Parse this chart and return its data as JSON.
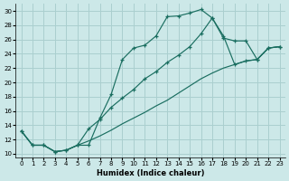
{
  "xlabel": "Humidex (Indice chaleur)",
  "bg_color": "#cce8e8",
  "grid_color": "#aacfcf",
  "line_color": "#1a6e60",
  "xlim": [
    -0.5,
    23.5
  ],
  "ylim": [
    9.5,
    31
  ],
  "xticks": [
    0,
    1,
    2,
    3,
    4,
    5,
    6,
    7,
    8,
    9,
    10,
    11,
    12,
    13,
    14,
    15,
    16,
    17,
    18,
    19,
    20,
    21,
    22,
    23
  ],
  "yticks": [
    10,
    12,
    14,
    16,
    18,
    20,
    22,
    24,
    26,
    28,
    30
  ],
  "line1_x": [
    0,
    1,
    2,
    3,
    4,
    5,
    6,
    7,
    8,
    9,
    10,
    11,
    12,
    13,
    14,
    15,
    16,
    17,
    18,
    19,
    20,
    21,
    22,
    23
  ],
  "line1_y": [
    13.2,
    11.2,
    11.2,
    10.3,
    10.5,
    11.2,
    11.2,
    15.0,
    18.3,
    23.2,
    24.8,
    25.2,
    26.5,
    29.2,
    29.3,
    29.7,
    30.2,
    29.0,
    26.2,
    25.8,
    25.8,
    23.2,
    24.8,
    25.0
  ],
  "line2_x": [
    0,
    1,
    2,
    3,
    4,
    5,
    6,
    7,
    8,
    9,
    10,
    11,
    12,
    13,
    14,
    15,
    16,
    17,
    18,
    19,
    20,
    21,
    22,
    23
  ],
  "line2_y": [
    13.2,
    11.2,
    11.2,
    10.3,
    10.5,
    11.2,
    13.5,
    14.8,
    16.5,
    17.8,
    19.0,
    20.5,
    21.5,
    22.8,
    23.8,
    25.0,
    26.8,
    29.0,
    26.5,
    22.5,
    23.0,
    23.2,
    24.8,
    25.0
  ],
  "line3_x": [
    0,
    1,
    2,
    3,
    4,
    5,
    6,
    7,
    8,
    9,
    10,
    11,
    12,
    13,
    14,
    15,
    16,
    17,
    18,
    19,
    20,
    21,
    22,
    23
  ],
  "line3_y": [
    13.2,
    11.2,
    11.2,
    10.3,
    10.5,
    11.2,
    11.8,
    12.5,
    13.3,
    14.2,
    15.0,
    15.8,
    16.7,
    17.5,
    18.5,
    19.5,
    20.5,
    21.3,
    22.0,
    22.5,
    23.0,
    23.2,
    24.8,
    25.0
  ]
}
